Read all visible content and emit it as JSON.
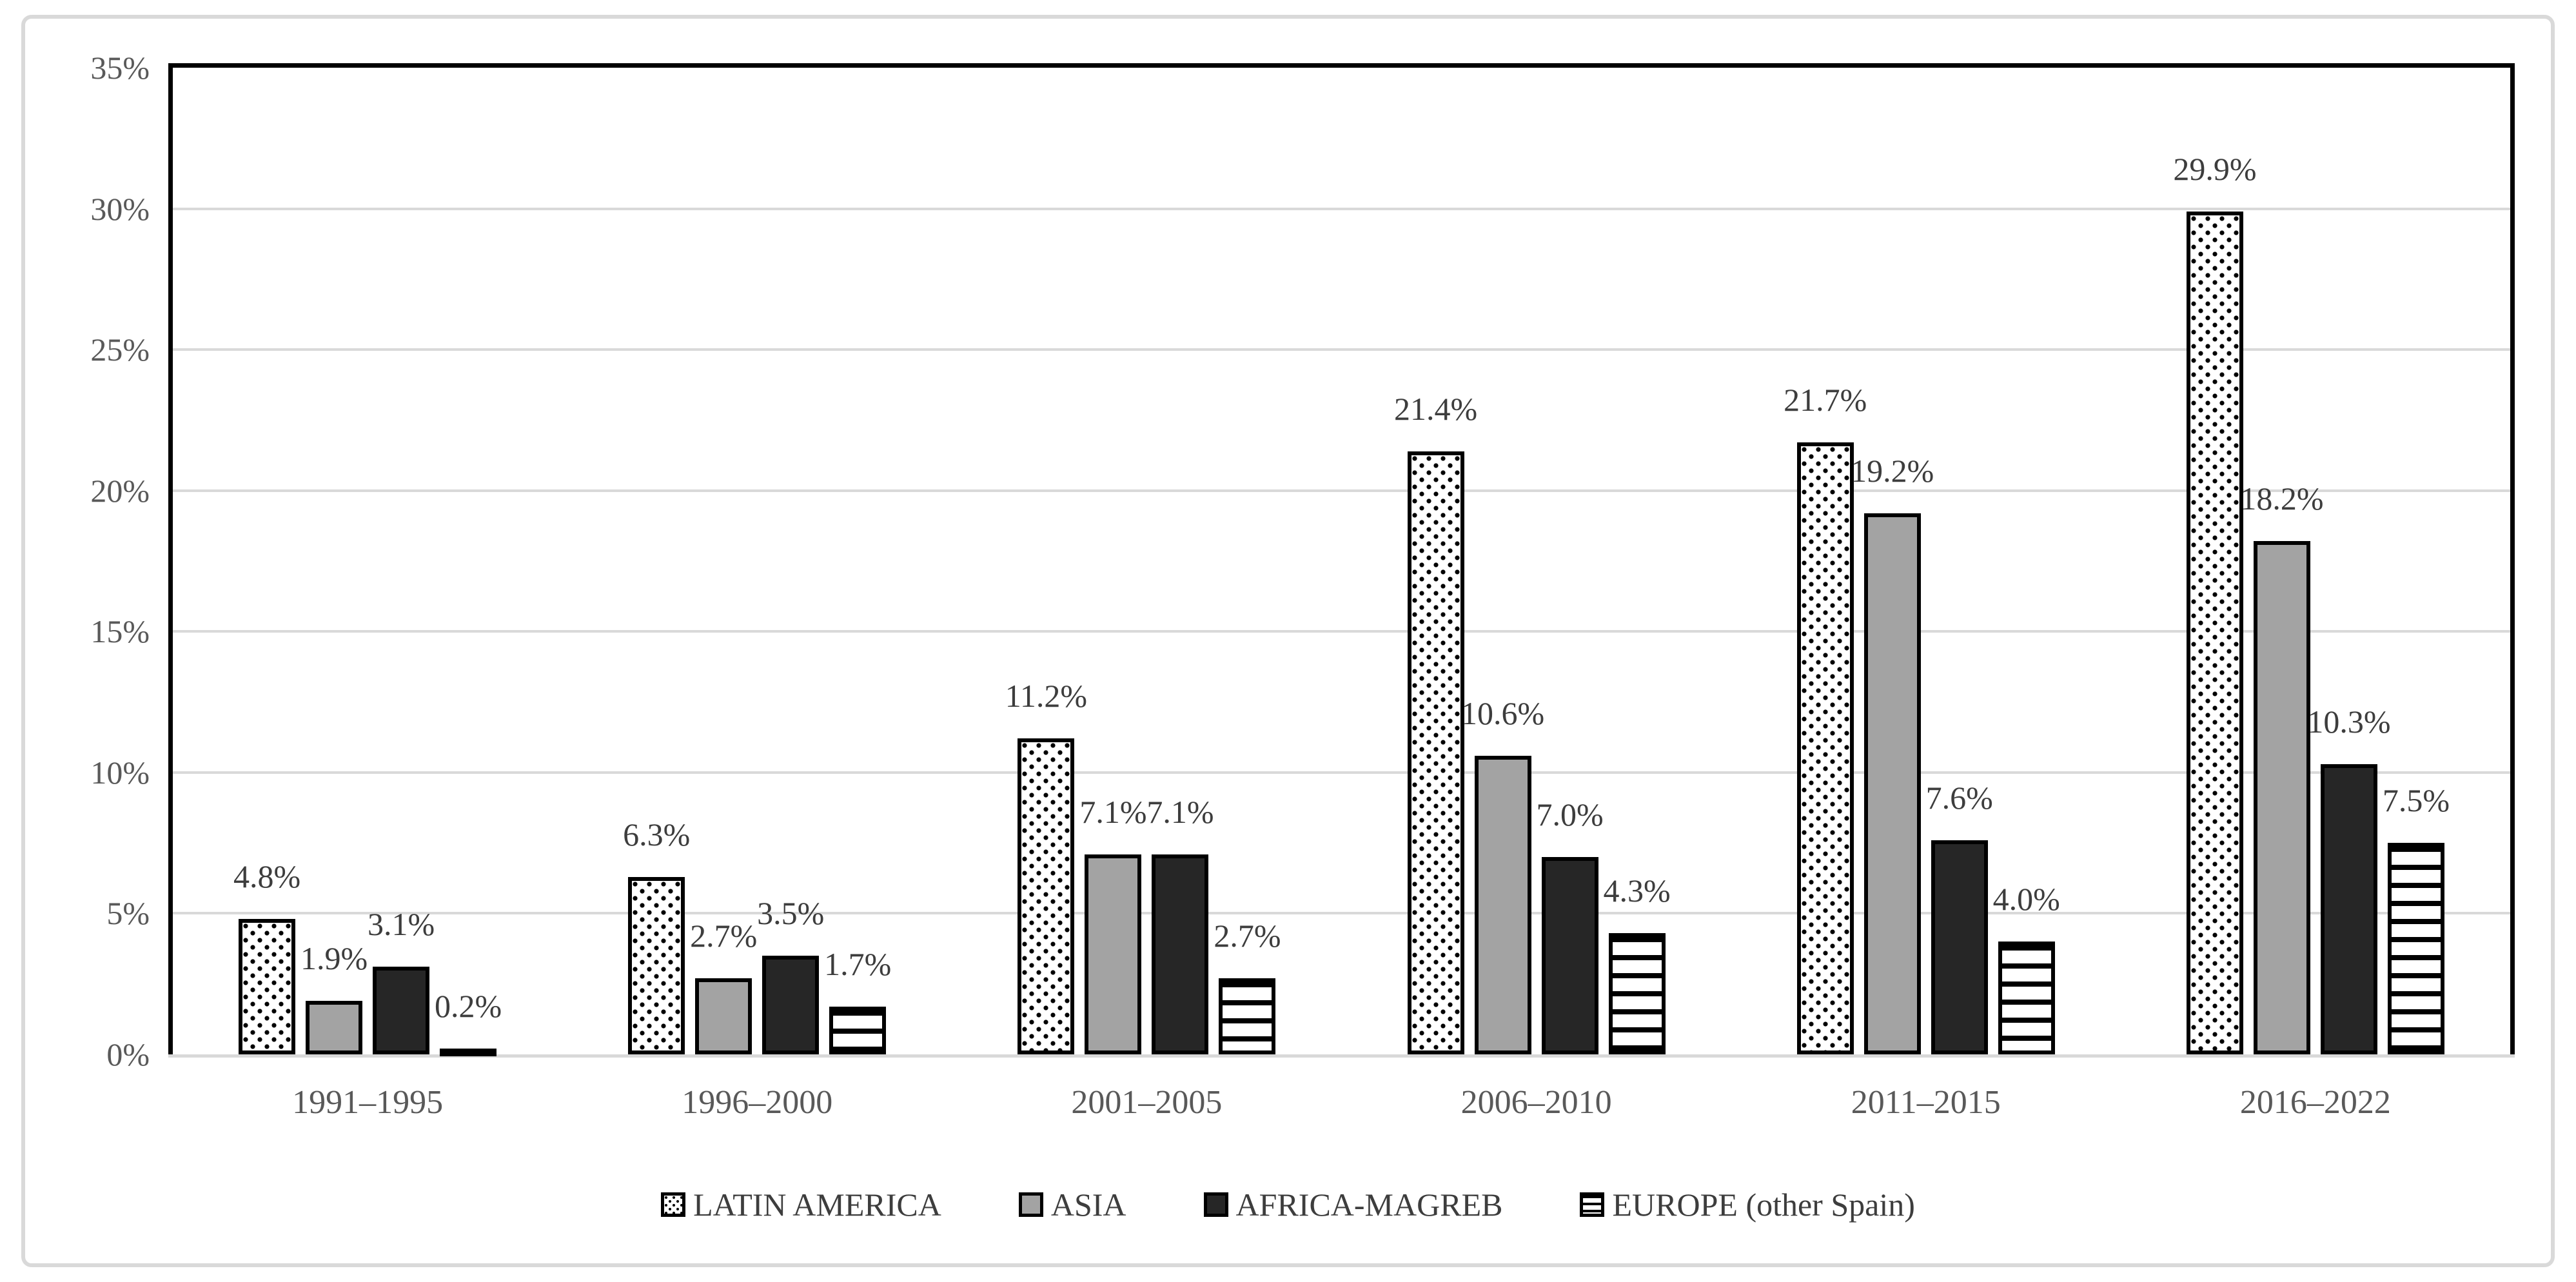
{
  "chart_data": {
    "type": "bar",
    "title": "",
    "xlabel": "",
    "ylabel": "",
    "ylim": [
      0,
      35
    ],
    "grid": true,
    "legend_position": "bottom",
    "categories": [
      "1991–1995",
      "1996–2000",
      "2001–2005",
      "2006–2010",
      "2011–2015",
      "2016–2022"
    ],
    "y_ticks": [
      {
        "value": 0,
        "label": "0%"
      },
      {
        "value": 5,
        "label": "5%"
      },
      {
        "value": 10,
        "label": "10%"
      },
      {
        "value": 15,
        "label": "15%"
      },
      {
        "value": 20,
        "label": "20%"
      },
      {
        "value": 25,
        "label": "25%"
      },
      {
        "value": 30,
        "label": "30%"
      },
      {
        "value": 35,
        "label": "35%"
      }
    ],
    "series": [
      {
        "name": "LATIN AMERICA",
        "pattern": "dots",
        "fill": "#ffffff",
        "values": [
          4.8,
          6.3,
          11.2,
          21.4,
          21.7,
          29.9
        ],
        "labels": [
          "4.8%",
          "6.3%",
          "11.2%",
          "21.4%",
          "21.7%",
          "29.9%"
        ]
      },
      {
        "name": "ASIA",
        "pattern": "gray",
        "fill": "#a3a3a3",
        "values": [
          1.9,
          2.7,
          7.1,
          10.6,
          19.2,
          18.2
        ],
        "labels": [
          "1.9%",
          "2.7%",
          "7.1%",
          "10.6%",
          "19.2%",
          "18.2%"
        ]
      },
      {
        "name": "AFRICA-MAGREB",
        "pattern": "dark",
        "fill": "#262626",
        "values": [
          3.1,
          3.5,
          7.1,
          7.0,
          7.6,
          10.3
        ],
        "labels": [
          "3.1%",
          "3.5%",
          "7.1%",
          "7.0%",
          "7.6%",
          "10.3%"
        ]
      },
      {
        "name": "EUROPE (other Spain)",
        "pattern": "hlines",
        "fill": "#ffffff",
        "values": [
          0.2,
          1.7,
          2.7,
          4.3,
          4.0,
          7.5
        ],
        "labels": [
          "0.2%",
          "1.7%",
          "2.7%",
          "4.3%",
          "4.0%",
          "7.5%"
        ]
      }
    ],
    "colors": {
      "axis_line": "#000000",
      "gridline": "#d9d9d9",
      "frame_border": "#d9d9d9",
      "tick_text": "#595959",
      "data_label_text": "#3d3d3d",
      "background": "#ffffff"
    }
  }
}
